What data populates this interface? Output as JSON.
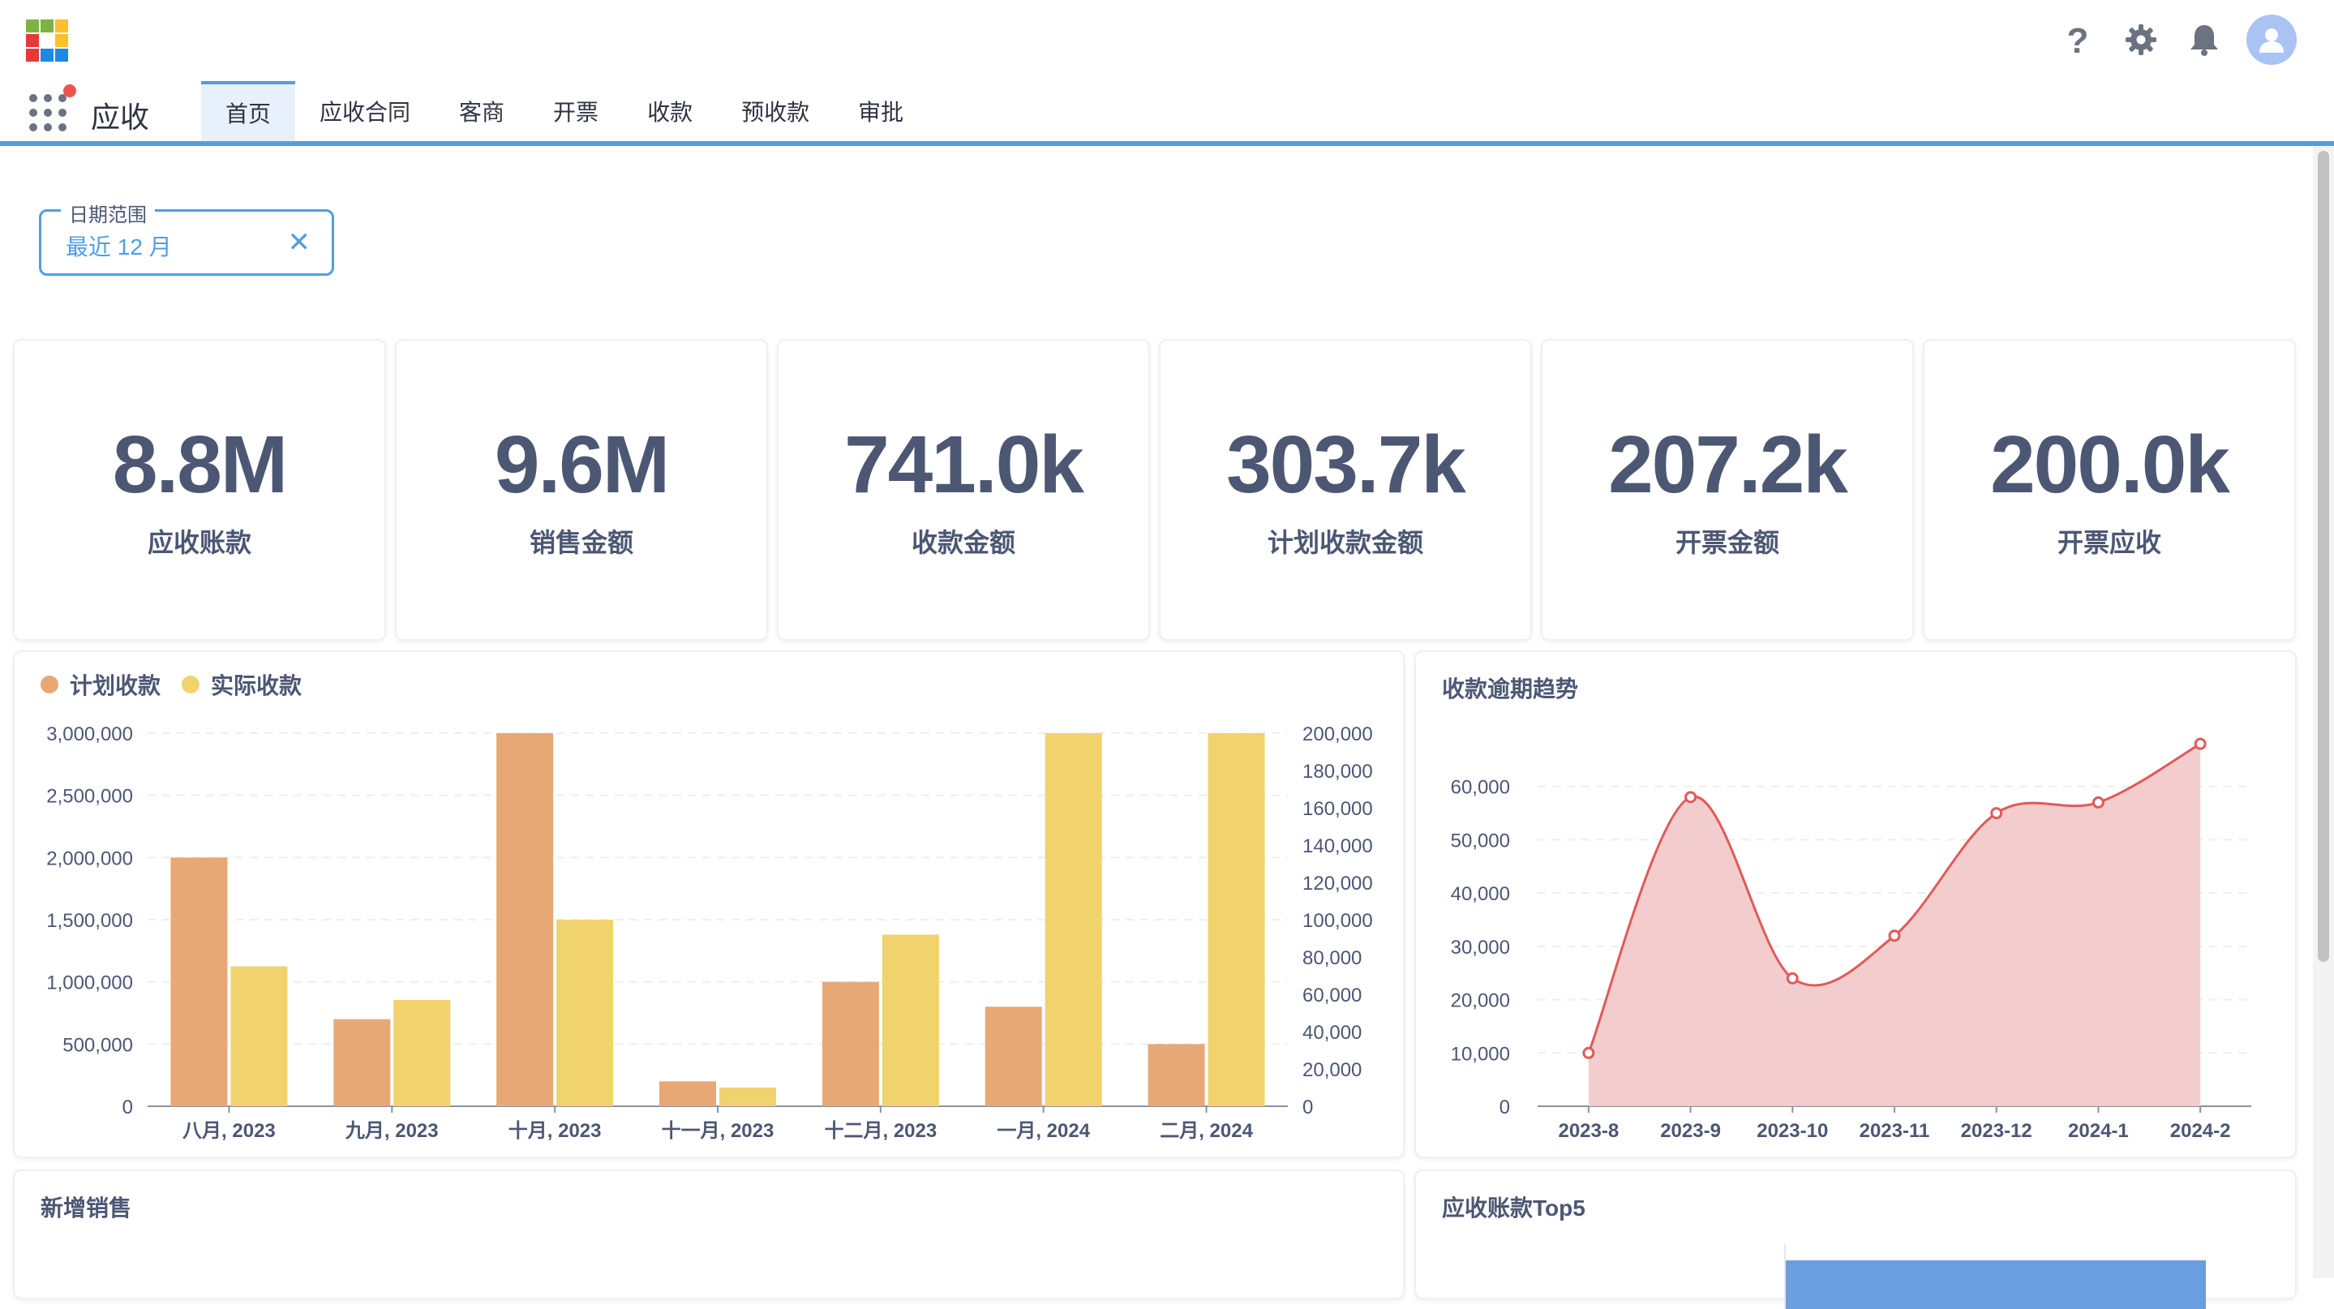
{
  "header": {
    "app_title": "应收",
    "tabs": [
      "首页",
      "应收合同",
      "客商",
      "开票",
      "收款",
      "预收款",
      "审批"
    ],
    "active_tab": 0,
    "help_icon": "help-icon",
    "settings_icon": "gear-icon",
    "bell_icon": "bell-icon",
    "avatar_icon": "user-avatar-icon"
  },
  "filter": {
    "label": "日期范围",
    "value": "最近 12 月",
    "clear": "✕"
  },
  "kpis": [
    {
      "value": "8.8M",
      "label": "应收账款"
    },
    {
      "value": "9.6M",
      "label": "销售金额"
    },
    {
      "value": "741.0k",
      "label": "收款金额"
    },
    {
      "value": "303.7k",
      "label": "计划收款金额"
    },
    {
      "value": "207.2k",
      "label": "开票金额"
    },
    {
      "value": "200.0k",
      "label": "开票应收"
    }
  ],
  "colors": {
    "accent": "#509ee3",
    "planned": "#e7a876",
    "actual": "#f0d36d",
    "trend_line": "#e05a5a",
    "trend_fill": "#f2c8c8",
    "top5_bar": "#6a9ee0"
  },
  "chart_data": [
    {
      "type": "bar",
      "title": "",
      "categories": [
        "八月, 2023",
        "九月, 2023",
        "十月, 2023",
        "十一月, 2023",
        "十二月, 2023",
        "一月, 2024",
        "二月, 2024"
      ],
      "series": [
        {
          "name": "计划收款",
          "axis": "left",
          "values": [
            2000000,
            700000,
            3000000,
            200000,
            1000000,
            800000,
            500000
          ]
        },
        {
          "name": "实际收款",
          "axis": "right",
          "values": [
            75000,
            57000,
            100000,
            10000,
            92000,
            204000,
            202000
          ]
        }
      ],
      "y_left": {
        "ylim": [
          0,
          3000000
        ],
        "ticks": [
          "0",
          "500,000",
          "1,000,000",
          "1,500,000",
          "2,000,000",
          "2,500,000",
          "3,000,000"
        ]
      },
      "y_right": {
        "ylim": [
          0,
          200000
        ],
        "ticks": [
          "0",
          "20,000",
          "40,000",
          "60,000",
          "80,000",
          "100,000",
          "120,000",
          "140,000",
          "160,000",
          "180,000",
          "200,000"
        ]
      },
      "legend_position": "top-left",
      "grid": true
    },
    {
      "type": "area",
      "title": "收款逾期趋势",
      "x": [
        "2023-8",
        "2023-9",
        "2023-10",
        "2023-11",
        "2023-12",
        "2024-1",
        "2024-2"
      ],
      "values": [
        10000,
        58000,
        24000,
        32000,
        55000,
        57000,
        68000
      ],
      "ylim": [
        0,
        70000
      ],
      "y_ticks": [
        "0",
        "10,000",
        "20,000",
        "30,000",
        "40,000",
        "50,000",
        "60,000"
      ],
      "grid": true
    }
  ],
  "bottom_cards": {
    "new_sales_title": "新增销售",
    "top5_title": "应收账款Top5"
  }
}
